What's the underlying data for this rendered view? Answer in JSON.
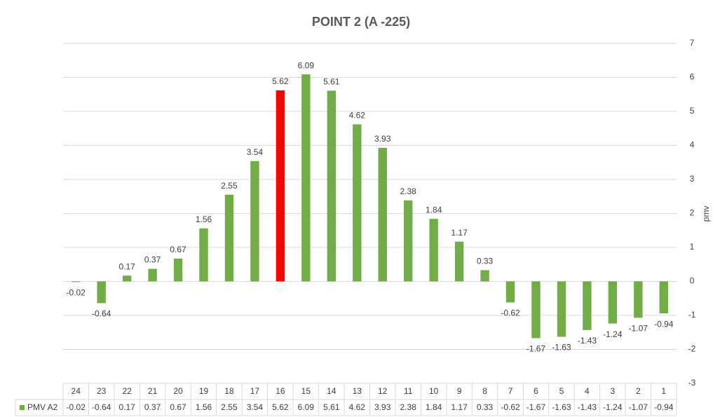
{
  "chart_data": {
    "type": "bar",
    "title": "POINT 2 (A -225)",
    "y_axis_label": "pmv",
    "categories": [
      "24",
      "23",
      "22",
      "21",
      "20",
      "19",
      "18",
      "17",
      "16",
      "15",
      "14",
      "13",
      "12",
      "11",
      "10",
      "9",
      "8",
      "7",
      "6",
      "5",
      "4",
      "3",
      "2",
      "1"
    ],
    "series": [
      {
        "name": "PMV A2",
        "color": "#70ad47",
        "values": [
          -0.02,
          -0.64,
          0.17,
          0.37,
          0.67,
          1.56,
          2.55,
          3.54,
          5.62,
          6.09,
          5.61,
          4.62,
          3.93,
          2.38,
          1.84,
          1.17,
          0.33,
          -0.62,
          -1.67,
          -1.63,
          -1.43,
          -1.24,
          -1.07,
          -0.94
        ],
        "colors": [
          "#70ad47",
          "#70ad47",
          "#70ad47",
          "#70ad47",
          "#70ad47",
          "#70ad47",
          "#70ad47",
          "#70ad47",
          "#ff0000",
          "#70ad47",
          "#70ad47",
          "#70ad47",
          "#70ad47",
          "#70ad47",
          "#70ad47",
          "#70ad47",
          "#70ad47",
          "#70ad47",
          "#70ad47",
          "#70ad47",
          "#70ad47",
          "#70ad47",
          "#70ad47",
          "#70ad47"
        ]
      }
    ],
    "ylim": [
      -3,
      7
    ],
    "yticks": [
      -3,
      -2,
      -1,
      0,
      1,
      2,
      3,
      4,
      5,
      6,
      7
    ],
    "grid": true,
    "y_axis_side": "right",
    "data_table": true
  }
}
